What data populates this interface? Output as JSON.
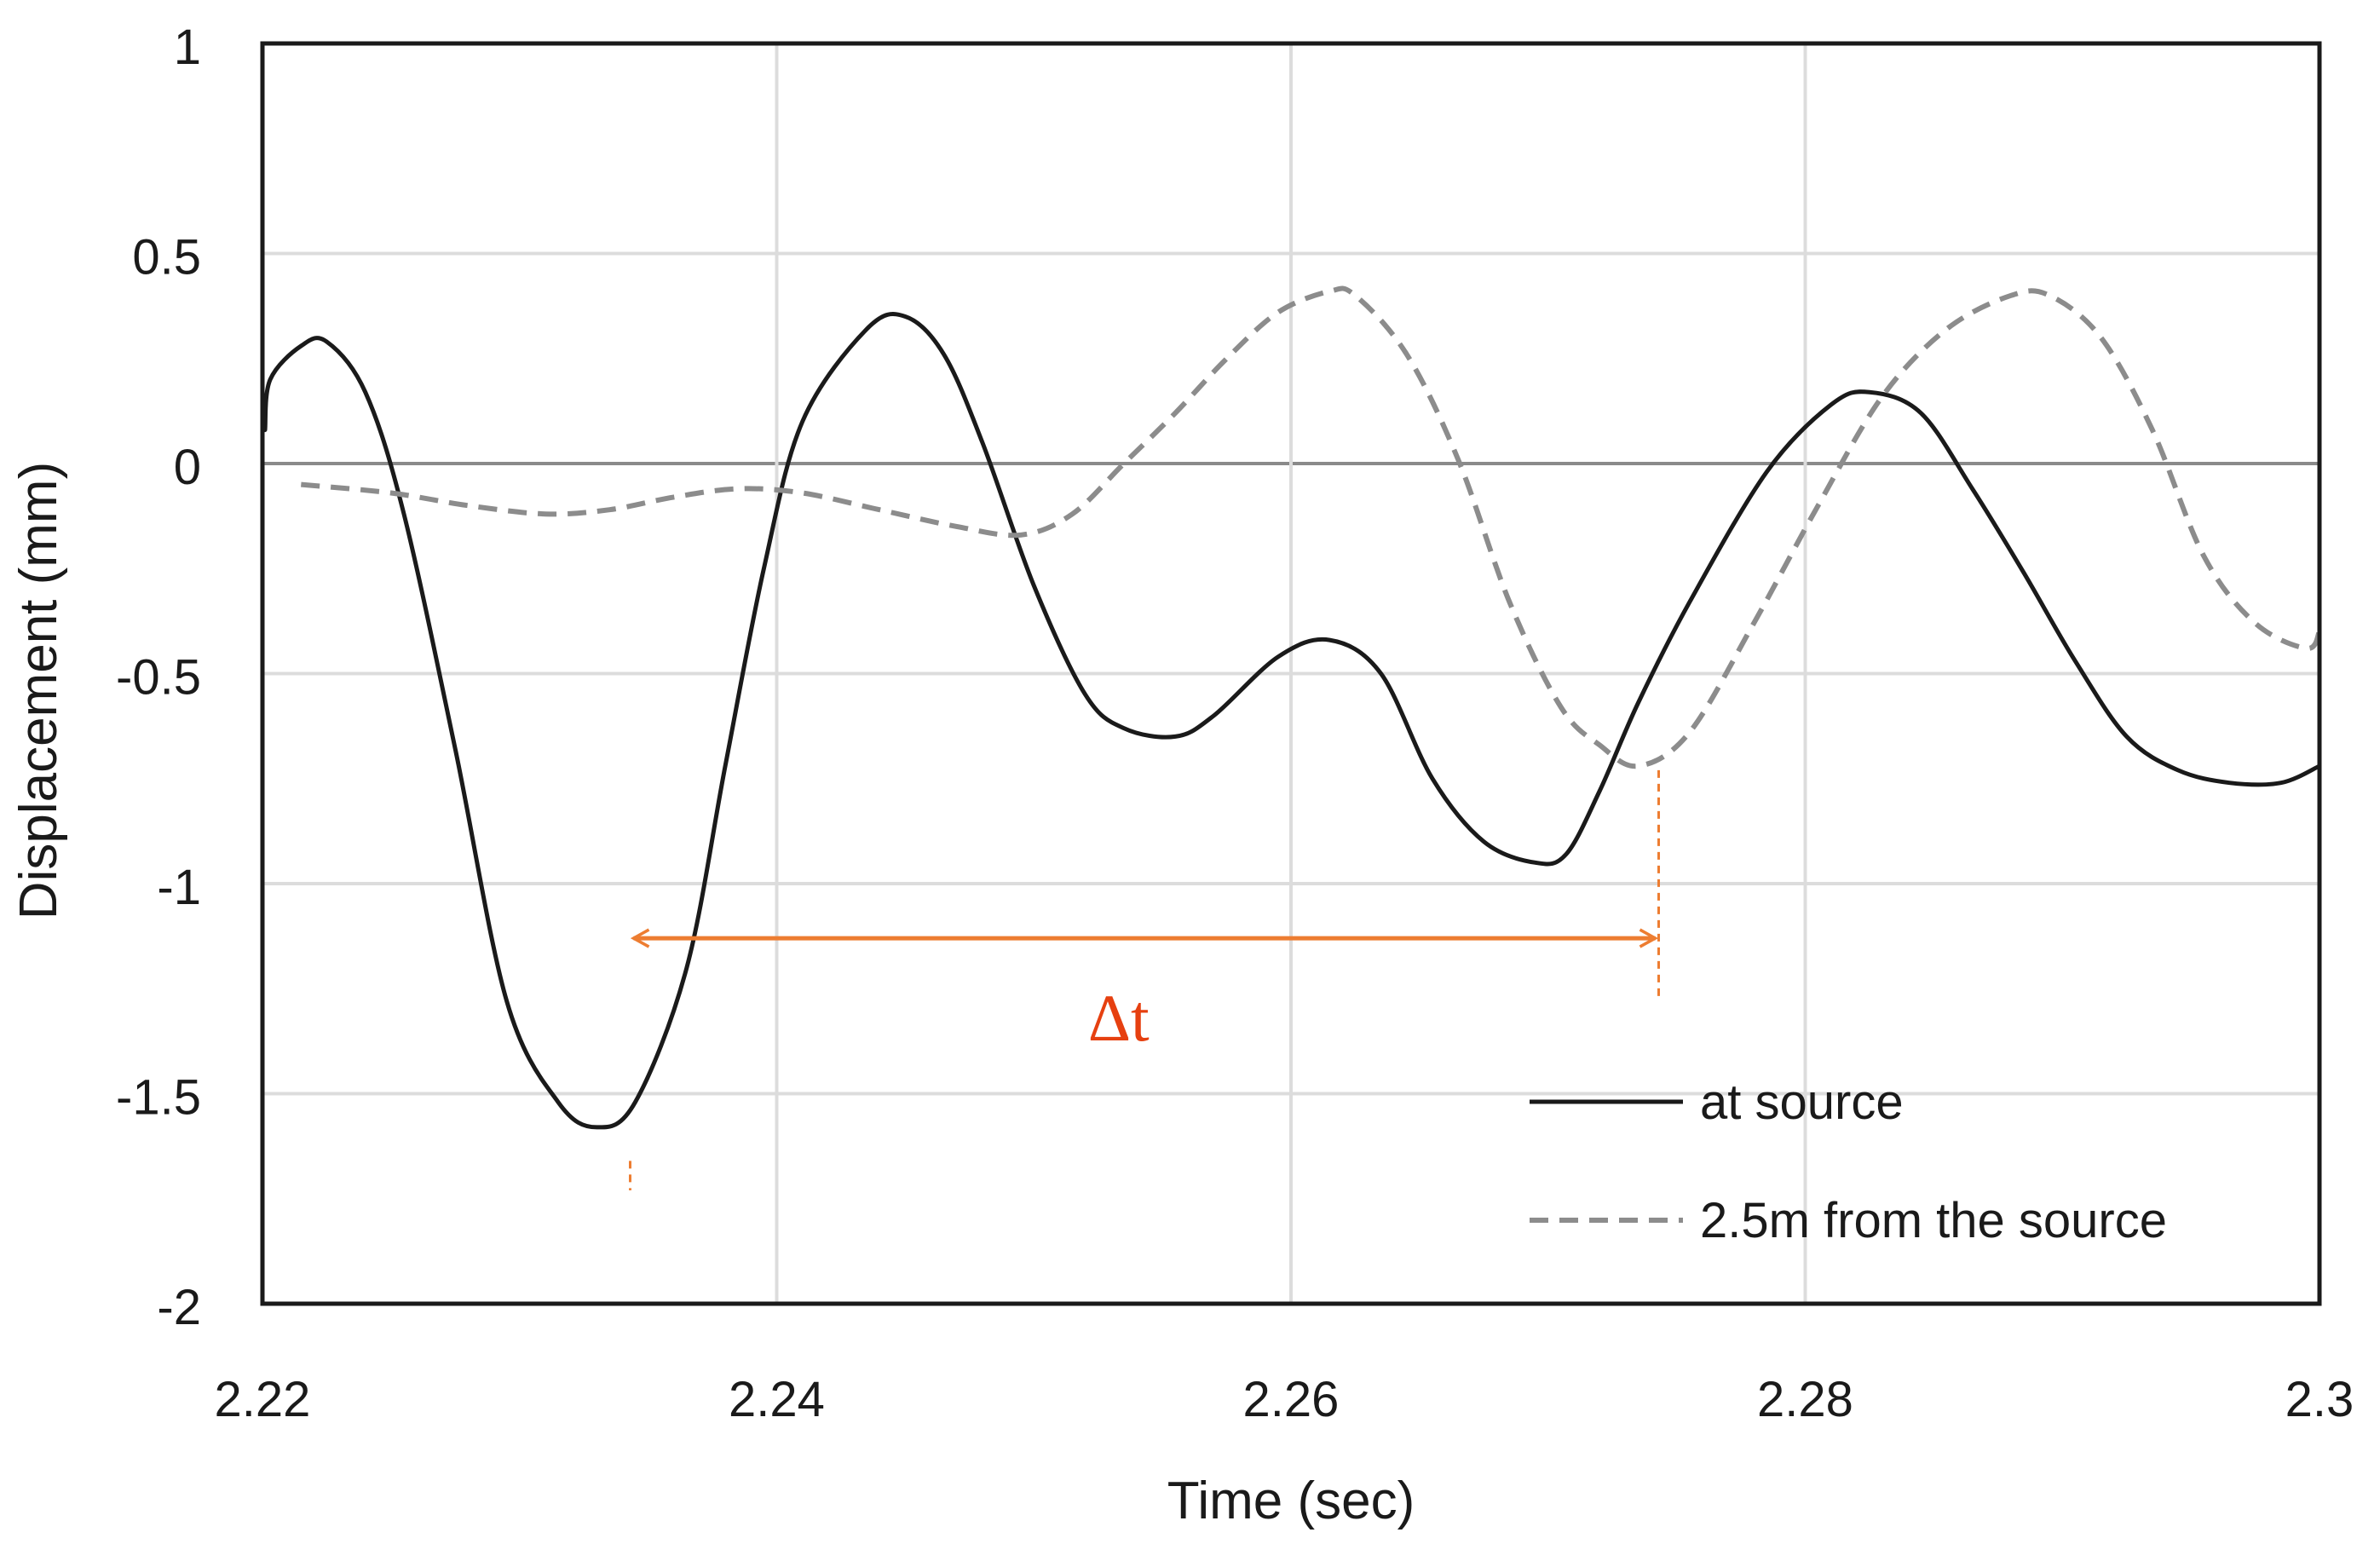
{
  "chart_data": {
    "type": "line",
    "xlabel": "Time (sec)",
    "ylabel": "Displacement (mm)",
    "xlim": [
      2.22,
      2.3
    ],
    "ylim": [
      -2,
      1
    ],
    "xticks": [
      2.22,
      2.24,
      2.26,
      2.28,
      2.3
    ],
    "xtick_labels": [
      "2.22",
      "2.24",
      "2.26",
      "2.28",
      "2.3"
    ],
    "yticks": [
      1,
      0.5,
      0,
      -0.5,
      -1,
      -1.5,
      -2
    ],
    "ytick_labels": [
      "1",
      "0.5",
      "0",
      "-0.5",
      "-1",
      "-1.5",
      "-2"
    ],
    "grid": true,
    "legend_position": "bottom-right",
    "series": [
      {
        "name": "at source",
        "style": "solid",
        "color": "#1a1a1a",
        "x": [
          2.2201,
          2.2203,
          2.2215,
          2.2225,
          2.224,
          2.2255,
          2.2275,
          2.2295,
          2.2315,
          2.233,
          2.2345,
          2.2365,
          2.238,
          2.2395,
          2.241,
          2.2435,
          2.245,
          2.2465,
          2.248,
          2.25,
          2.252,
          2.2535,
          2.2555,
          2.257,
          2.2595,
          2.2615,
          2.2635,
          2.2655,
          2.2675,
          2.2695,
          2.2707,
          2.272,
          2.2735,
          2.2755,
          2.2785,
          2.281,
          2.2825,
          2.2845,
          2.2865,
          2.2885,
          2.2905,
          2.2925,
          2.2945,
          2.2965,
          2.2985,
          2.3
        ],
        "y": [
          0.08,
          0.2,
          0.28,
          0.29,
          0.17,
          -0.12,
          -0.68,
          -1.28,
          -1.52,
          -1.58,
          -1.52,
          -1.2,
          -0.72,
          -0.25,
          0.1,
          0.32,
          0.35,
          0.26,
          0.05,
          -0.29,
          -0.55,
          -0.63,
          -0.65,
          -0.6,
          -0.46,
          -0.42,
          -0.5,
          -0.75,
          -0.9,
          -0.95,
          -0.93,
          -0.78,
          -0.57,
          -0.33,
          -0.02,
          0.14,
          0.17,
          0.12,
          -0.06,
          -0.26,
          -0.47,
          -0.65,
          -0.73,
          -0.76,
          -0.76,
          -0.72
        ]
      },
      {
        "name": "2.5m from the source",
        "style": "dashed",
        "color": "#8c8c8c",
        "x": [
          2.2215,
          2.225,
          2.228,
          2.231,
          2.2335,
          2.236,
          2.2385,
          2.241,
          2.244,
          2.247,
          2.2495,
          2.2515,
          2.2535,
          2.2555,
          2.2575,
          2.2595,
          2.2615,
          2.2625,
          2.2645,
          2.2665,
          2.2685,
          2.2705,
          2.272,
          2.2735,
          2.2755,
          2.278,
          2.2805,
          2.283,
          2.2855,
          2.288,
          2.2895,
          2.2915,
          2.2935,
          2.2955,
          2.2975,
          2.2995,
          2.3
        ],
        "y": [
          -0.05,
          -0.07,
          -0.1,
          -0.12,
          -0.11,
          -0.08,
          -0.06,
          -0.07,
          -0.11,
          -0.15,
          -0.17,
          -0.12,
          0.0,
          0.12,
          0.25,
          0.36,
          0.41,
          0.4,
          0.26,
          0.01,
          -0.33,
          -0.58,
          -0.67,
          -0.72,
          -0.64,
          -0.38,
          -0.1,
          0.16,
          0.32,
          0.4,
          0.4,
          0.3,
          0.08,
          -0.22,
          -0.38,
          -0.44,
          -0.4
        ]
      }
    ],
    "annotations": [
      {
        "label": "Δt",
        "color": "#e64010",
        "arrow_color": "#ed7d31",
        "x_start": 2.2343,
        "x_end": 2.2743,
        "arrow_y": -1.13,
        "label_x": 2.2533,
        "label_y": -1.32,
        "line_start_y": [
          -1.73,
          -1.66
        ],
        "line_end_y": [
          -0.73,
          -1.28
        ]
      }
    ]
  }
}
